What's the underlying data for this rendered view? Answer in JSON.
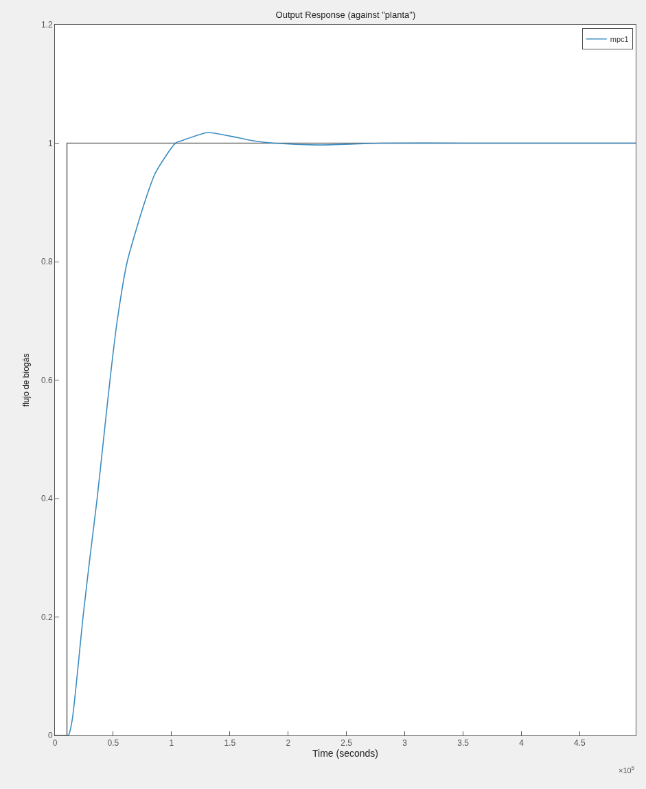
{
  "chart_data": {
    "type": "line",
    "title": "Output Response (against \"planta\")",
    "xlabel": "Time (seconds)",
    "ylabel": "flujo de biogás",
    "annotations": [
      "×10$^{5}$"
    ],
    "series": [
      {
        "color": "#707070",
        "x": [
          0,
          0.103,
          0.103,
          4.98
        ],
        "values": [
          0,
          0,
          1,
          1
        ]
      },
      {
        "name": "mpc1",
        "color": "#3b8cc0",
        "x": [
          0,
          0.114,
          0.148,
          0.19,
          0.241,
          0.3,
          0.362,
          0.417,
          0.472,
          0.534,
          0.62,
          0.769,
          0.862,
          1.034,
          1.1,
          1.31,
          1.5,
          1.7,
          1.88,
          2.25,
          2.8,
          3.5,
          4.98
        ],
        "values": [
          0,
          0,
          0.026,
          0.1,
          0.2,
          0.3,
          0.4,
          0.5,
          0.6,
          0.7,
          0.8,
          0.9,
          0.95,
          1.0,
          1.005,
          1.018,
          1.012,
          1.004,
          1.0,
          0.997,
          1.0,
          1.0,
          1.0
        ]
      }
    ],
    "xlim": [
      0,
      4.98
    ],
    "xticks": [
      0,
      0.5,
      1,
      1.5,
      2,
      2.5,
      3,
      3.5,
      4,
      4.5
    ],
    "ylim": [
      0,
      1.2
    ],
    "yticks": [
      0,
      0.2,
      0.4,
      0.6,
      0.8,
      1,
      1.2
    ],
    "grid": false,
    "legend": "top right",
    "marker": "none",
    "line_style": "solid"
  }
}
